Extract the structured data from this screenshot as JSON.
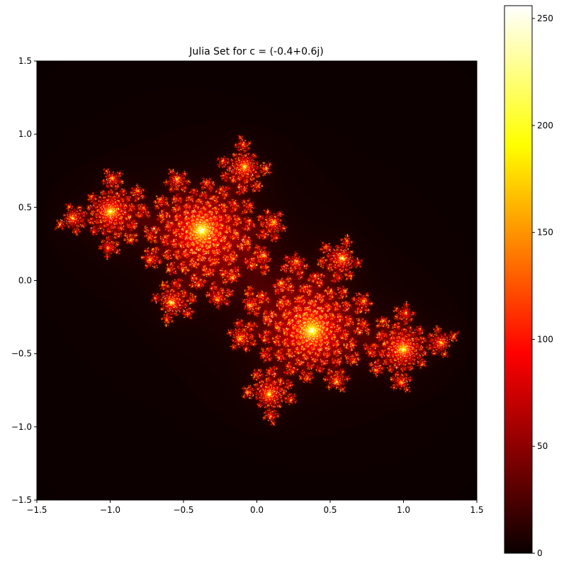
{
  "chart_data": {
    "type": "heatmap",
    "title": "Julia Set for c = (-0.4+0.6j)",
    "xlabel": "",
    "ylabel": "",
    "c": {
      "re": -0.4,
      "im": 0.6
    },
    "max_iter": 256,
    "xlim": [
      -1.5,
      1.5
    ],
    "ylim": [
      -1.5,
      1.5
    ],
    "x_ticks": [
      -1.5,
      -1.0,
      -0.5,
      0.0,
      0.5,
      1.0,
      1.5
    ],
    "x_tick_labels": [
      "−1.5",
      "−1.0",
      "−0.5",
      "0.0",
      "0.5",
      "1.0",
      "1.5"
    ],
    "y_ticks": [
      1.5,
      1.0,
      0.5,
      0.0,
      -0.5,
      -1.0,
      -1.5
    ],
    "y_tick_labels": [
      "1.5",
      "1.0",
      "0.5",
      "0.0",
      "−0.5",
      "−1.0",
      "−1.5"
    ],
    "colormap": "hot",
    "colorbar": {
      "range": [
        0,
        256
      ],
      "ticks": [
        0,
        50,
        100,
        150,
        200,
        250
      ],
      "tick_labels": [
        "0",
        "50",
        "100",
        "150",
        "200",
        "250"
      ]
    },
    "grid": false
  },
  "colors": {
    "axis": "#000000",
    "cmap_low": "#0a0000",
    "cmap_mid1": "#ff0000",
    "cmap_mid2": "#ffff00",
    "cmap_high": "#ffffff"
  }
}
